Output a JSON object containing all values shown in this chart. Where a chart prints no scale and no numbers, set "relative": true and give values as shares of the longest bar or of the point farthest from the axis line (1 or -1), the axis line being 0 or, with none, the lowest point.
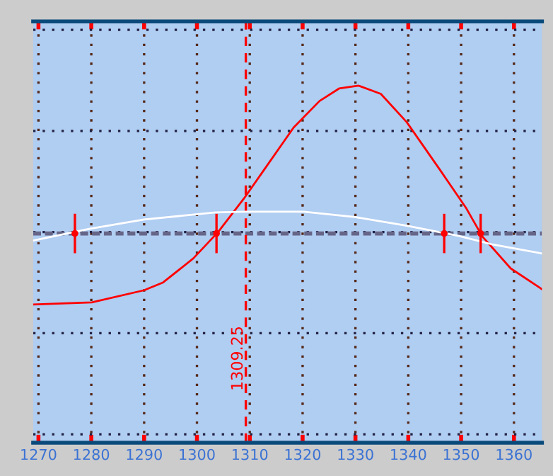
{
  "chart_data": {
    "type": "line",
    "relative": true,
    "xlim": [
      1269,
      1365.3
    ],
    "xticks": [
      1270,
      1280,
      1290,
      1300,
      1310,
      1320,
      1330,
      1340,
      1350,
      1360
    ],
    "tick_labels": "x",
    "grid": true,
    "legend": false,
    "marker": "none",
    "line_style": "solid",
    "series": [
      {
        "color": "#ff0000",
        "x": [
          1269.0,
          1280.1,
          1290.0,
          1293.6,
          1299.3,
          1304.0,
          1308.9,
          1312.6,
          1318.3,
          1323.2,
          1326.9,
          1330.6,
          1334.8,
          1339.7,
          1346.1,
          1351.0,
          1354.0,
          1359.4,
          1365.3
        ],
        "values": [
          0.387,
          0.393,
          0.427,
          0.449,
          0.516,
          0.59,
          0.684,
          0.762,
          0.883,
          0.957,
          0.992,
          1.0,
          0.977,
          0.898,
          0.762,
          0.656,
          0.578,
          0.488,
          0.43
        ]
      },
      {
        "color": "#ffffff",
        "x": [
          1269.0,
          1279.6,
          1290.0,
          1303.5,
          1309.2,
          1320.2,
          1329.9,
          1339.7,
          1349.6,
          1356.0,
          1365.3
        ],
        "values": [
          0.566,
          0.599,
          0.625,
          0.645,
          0.647,
          0.647,
          0.632,
          0.608,
          0.579,
          0.555,
          0.53
        ]
      },
      {
        "type": "scatter",
        "marker": "circle",
        "color": "#ff0000",
        "x": [
          1276.9,
          1303.7,
          1346.8,
          1353.7
        ],
        "values": [
          0.586,
          0.586,
          0.586,
          0.586
        ]
      }
    ],
    "ref_lines": [
      {
        "axis": "y",
        "value": 0.586,
        "color": "#666688",
        "line_style": "dashed"
      },
      {
        "axis": "x",
        "value": 1309.25,
        "label": "1309.25",
        "color": "#ff0000",
        "line_style": "dashed"
      }
    ]
  }
}
